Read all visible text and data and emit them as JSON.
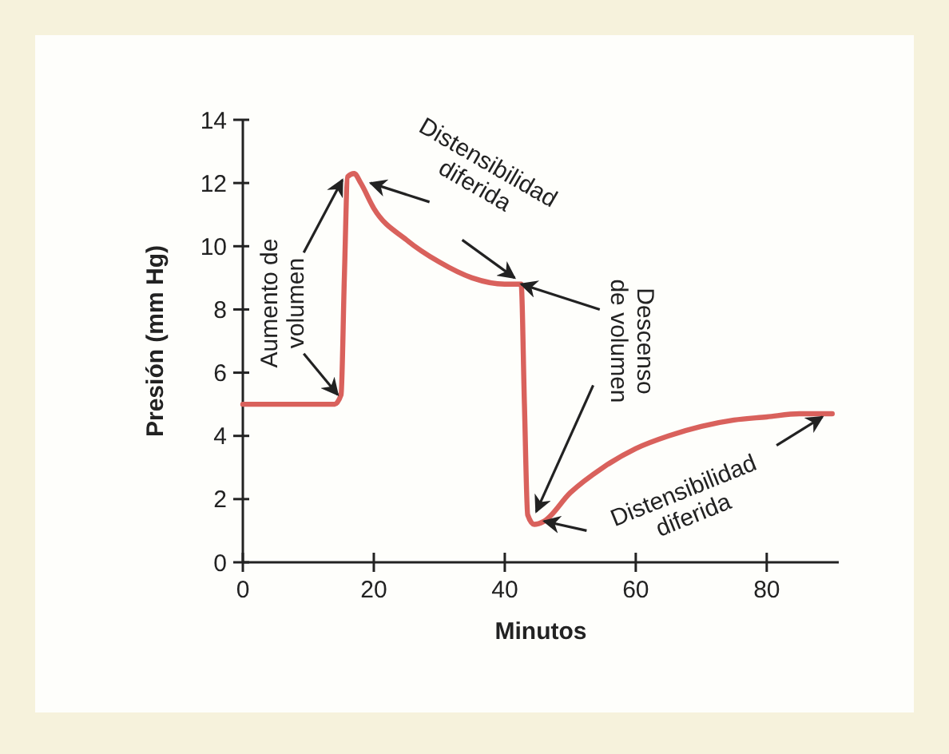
{
  "chart_data": {
    "type": "line",
    "xlabel": "Minutos",
    "ylabel": "Presión (mm Hg)",
    "xlim": [
      0,
      91
    ],
    "ylim": [
      0,
      14
    ],
    "xticks": [
      0,
      20,
      40,
      60,
      80
    ],
    "yticks": [
      0,
      2,
      4,
      6,
      8,
      10,
      12,
      14
    ],
    "grid": false,
    "marker": "none",
    "line_style": "solid",
    "series": [
      {
        "color": "#d9615c",
        "x": [
          0,
          14,
          15,
          15.5,
          16,
          17,
          18,
          20,
          25,
          30,
          35,
          40,
          42.5,
          43,
          43.5,
          44.5,
          46,
          50,
          55,
          60,
          65,
          70,
          75,
          80,
          85,
          90
        ],
        "values": [
          5,
          5,
          5.3,
          9,
          12.2,
          12.3,
          12,
          11.2,
          10.2,
          9.5,
          9.0,
          8.8,
          8.8,
          5,
          1.5,
          1.2,
          1.3,
          2.2,
          3.0,
          3.6,
          4.0,
          4.3,
          4.5,
          4.6,
          4.7,
          4.7
        ]
      }
    ],
    "annotations": [
      {
        "text": "Aumento de volumen",
        "x": 15.2,
        "y": 12.1
      },
      {
        "text": "Distensibilidad diferida",
        "x": 19.5,
        "y": 12.0
      },
      {
        "text": "Descenso de volumen",
        "x": 42.5,
        "y": 8.8
      },
      {
        "text": "Distensibilidad diferida",
        "x": 46,
        "y": 1.3
      }
    ]
  }
}
